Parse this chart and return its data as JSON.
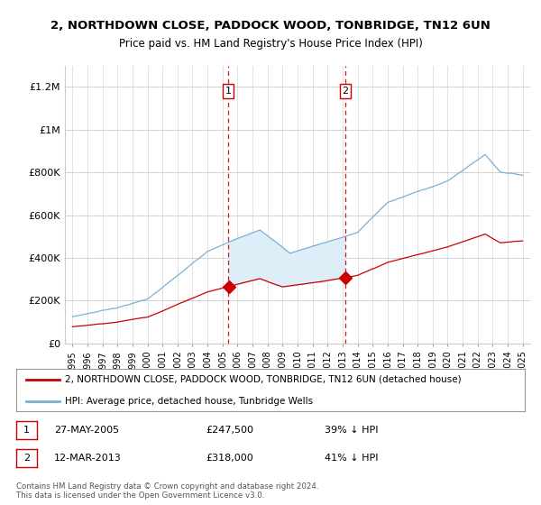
{
  "title": "2, NORTHDOWN CLOSE, PADDOCK WOOD, TONBRIDGE, TN12 6UN",
  "subtitle": "Price paid vs. HM Land Registry's House Price Index (HPI)",
  "ylim": [
    0,
    1300000
  ],
  "yticks": [
    0,
    200000,
    400000,
    600000,
    800000,
    1000000,
    1200000
  ],
  "ytick_labels": [
    "£0",
    "£200K",
    "£400K",
    "£600K",
    "£800K",
    "£1M",
    "£1.2M"
  ],
  "legend_line1": "2, NORTHDOWN CLOSE, PADDOCK WOOD, TONBRIDGE, TN12 6UN (detached house)",
  "legend_line2": "HPI: Average price, detached house, Tunbridge Wells",
  "sale1_label": "1",
  "sale1_date": "27-MAY-2005",
  "sale1_price": "£247,500",
  "sale1_hpi": "39% ↓ HPI",
  "sale1_year": 2005.38,
  "sale1_value": 247500,
  "sale2_label": "2",
  "sale2_date": "12-MAR-2013",
  "sale2_price": "£318,000",
  "sale2_hpi": "41% ↓ HPI",
  "sale2_year": 2013.19,
  "sale2_value": 318000,
  "hpi_color": "#7ab0d4",
  "price_color": "#cc0000",
  "shade_color": "#ddeef8",
  "footer": "Contains HM Land Registry data © Crown copyright and database right 2024.\nThis data is licensed under the Open Government Licence v3.0.",
  "background_color": "#ffffff"
}
